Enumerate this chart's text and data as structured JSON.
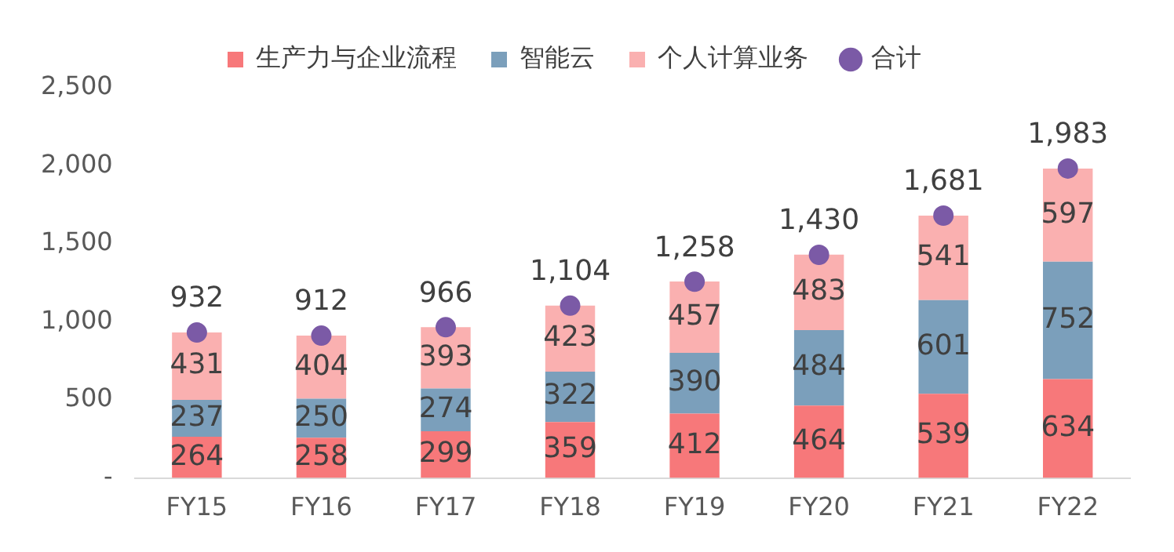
{
  "chart_data": {
    "type": "bar",
    "stacked": true,
    "legend": "top",
    "data_labels": true,
    "marker": "circle",
    "categories": [
      "FY15",
      "FY16",
      "FY17",
      "FY18",
      "FY19",
      "FY20",
      "FY21",
      "FY22"
    ],
    "ylim": [
      0,
      2500
    ],
    "yticks": [
      {
        "value": 0,
        "label": "-"
      },
      {
        "value": 500,
        "label": "500"
      },
      {
        "value": 1000,
        "label": "1,000"
      },
      {
        "value": 1500,
        "label": "1,500"
      },
      {
        "value": 2000,
        "label": "2,000"
      },
      {
        "value": 2500,
        "label": "2,500"
      }
    ],
    "series": [
      {
        "name": "生产力与企业流程",
        "color": "#f7787a",
        "values": [
          264,
          258,
          299,
          359,
          412,
          464,
          539,
          634
        ]
      },
      {
        "name": "智能云",
        "color": "#7b9fbb",
        "values": [
          237,
          250,
          274,
          322,
          390,
          484,
          601,
          752
        ]
      },
      {
        "name": "个人计算业务",
        "color": "#fab0b0",
        "values": [
          431,
          404,
          393,
          423,
          457,
          483,
          541,
          597
        ]
      },
      {
        "name": "合计",
        "type": "scatter",
        "color": "#7b5aa6",
        "x": [
          "FY15",
          "FY16",
          "FY17",
          "FY18",
          "FY19",
          "FY20",
          "FY21",
          "FY22"
        ],
        "values": [
          932,
          912,
          966,
          1104,
          1258,
          1430,
          1681,
          1983
        ],
        "value_labels": [
          "932",
          "912",
          "966",
          "1,104",
          "1,258",
          "1,430",
          "1,681",
          "1,983"
        ]
      }
    ]
  }
}
